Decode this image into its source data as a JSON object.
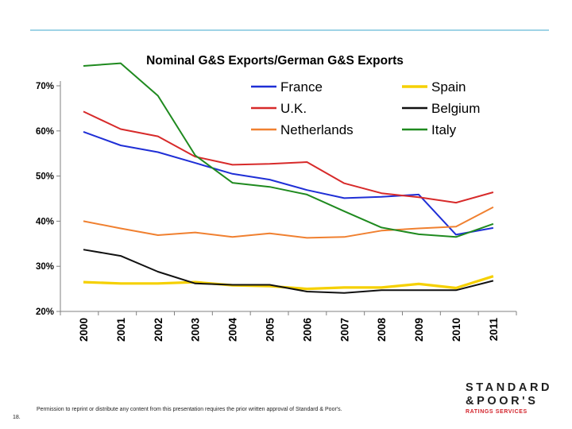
{
  "chart_data": {
    "type": "line",
    "title": "Nominal G&S Exports/German G&S Exports",
    "xlabel": "",
    "ylabel": "",
    "ylim": [
      20,
      70
    ],
    "yticks": [
      20,
      30,
      40,
      50,
      60,
      70
    ],
    "ytick_labels": [
      "20%",
      "30%",
      "40%",
      "50%",
      "60%",
      "70%"
    ],
    "grid": false,
    "legend_position": "top",
    "categories": [
      "2000",
      "2001",
      "2002",
      "2003",
      "2004",
      "2005",
      "2006",
      "2007",
      "2008",
      "2009",
      "2010",
      "2011"
    ],
    "series": [
      {
        "name": "France",
        "color": "#1f2fd6",
        "values": [
          59.8,
          56.8,
          55.3,
          52.9,
          50.5,
          49.2,
          46.9,
          45.1,
          45.4,
          45.9,
          37.0,
          38.5
        ]
      },
      {
        "name": "Spain",
        "color": "#f5d000",
        "values": [
          26.5,
          26.2,
          26.2,
          26.5,
          25.8,
          25.6,
          25.0,
          25.3,
          25.3,
          26.1,
          25.2,
          27.8
        ]
      },
      {
        "name": "U.K.",
        "color": "#d72a2a",
        "values": [
          64.3,
          60.4,
          58.8,
          54.3,
          52.5,
          52.7,
          53.1,
          48.4,
          46.2,
          45.3,
          44.1,
          46.4
        ]
      },
      {
        "name": "Belgium",
        "color": "#111111",
        "values": [
          33.7,
          32.3,
          28.8,
          26.2,
          25.9,
          25.9,
          24.4,
          24.1,
          24.7,
          24.7,
          24.7,
          26.8
        ]
      },
      {
        "name": "Netherlands",
        "color": "#f08030",
        "values": [
          40.0,
          38.4,
          36.9,
          37.5,
          36.5,
          37.3,
          36.3,
          36.5,
          37.9,
          38.4,
          38.8,
          43.1
        ]
      },
      {
        "name": "Italy",
        "color": "#1f8a1f",
        "values": [
          74.4,
          75.0,
          67.8,
          54.6,
          48.5,
          47.6,
          45.9,
          42.2,
          38.6,
          37.1,
          36.5,
          39.4
        ]
      }
    ]
  },
  "footer": {
    "permission_note": "Permission to reprint or distribute any content from this presentation requires the prior written approval of Standard & Poor's.",
    "page_number": "18."
  },
  "brand": {
    "line1": "STANDARD",
    "line2": "&POOR'S",
    "line3": "RATINGS SERVICES"
  },
  "colors": {
    "accent_rule": "#9fd3e6",
    "brand_red": "#d3222a"
  }
}
